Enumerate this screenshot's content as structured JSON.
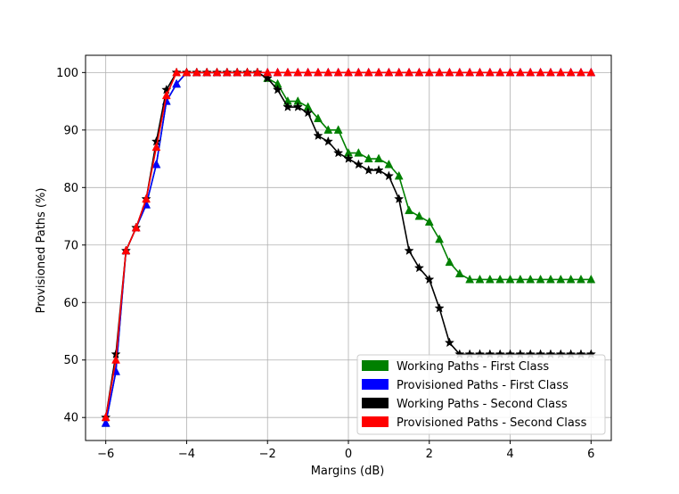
{
  "chart_data": {
    "type": "line",
    "xlabel": "Margins (dB)",
    "ylabel": "Provisioned Paths (%)",
    "xlim": [
      -6.5,
      6.5
    ],
    "ylim": [
      36,
      103
    ],
    "xticks": [
      -6,
      -4,
      -2,
      0,
      2,
      4,
      6
    ],
    "yticks": [
      40,
      50,
      60,
      70,
      80,
      90,
      100
    ],
    "xtick_labels": [
      "−6",
      "−4",
      "−2",
      "0",
      "2",
      "4",
      "6"
    ],
    "ytick_labels": [
      "40",
      "50",
      "60",
      "70",
      "80",
      "90",
      "100"
    ],
    "grid": true,
    "legend_position": "lower-right",
    "x": [
      -6,
      -5.75,
      -5.5,
      -5.25,
      -5,
      -4.75,
      -4.5,
      -4.25,
      -4,
      -3.75,
      -3.5,
      -3.25,
      -3,
      -2.75,
      -2.5,
      -2.25,
      -2,
      -1.75,
      -1.5,
      -1.25,
      -1,
      -0.75,
      -0.5,
      -0.25,
      0,
      0.25,
      0.5,
      0.75,
      1,
      1.25,
      1.5,
      1.75,
      2,
      2.25,
      2.5,
      2.75,
      3,
      3.25,
      3.5,
      3.75,
      4,
      4.25,
      4.5,
      4.75,
      5,
      5.25,
      5.5,
      5.75,
      6
    ],
    "series": [
      {
        "name": "Working Paths - First Class",
        "color": "#008000",
        "marker": "triangle",
        "values": [
          39,
          48,
          69,
          73,
          77,
          84,
          95,
          98,
          100,
          100,
          100,
          100,
          100,
          100,
          100,
          100,
          99,
          98,
          95,
          95,
          94,
          92,
          90,
          90,
          86,
          86,
          85,
          85,
          84,
          82,
          76,
          75,
          74,
          71,
          67,
          65,
          64,
          64,
          64,
          64,
          64,
          64,
          64,
          64,
          64,
          64,
          64,
          64,
          64
        ]
      },
      {
        "name": "Provisioned Paths - First Class",
        "color": "#0000ff",
        "marker": "triangle",
        "values": [
          39,
          48,
          69,
          73,
          77,
          84,
          95,
          98,
          100,
          100,
          100,
          100,
          100,
          100,
          100,
          100,
          100,
          100,
          100,
          100,
          100,
          100,
          100,
          100,
          100,
          100,
          100,
          100,
          100,
          100,
          100,
          100,
          100,
          100,
          100,
          100,
          100,
          100,
          100,
          100,
          100,
          100,
          100,
          100,
          100,
          100,
          100,
          100,
          100
        ]
      },
      {
        "name": "Working Paths - Second Class",
        "color": "#000000",
        "marker": "star",
        "values": [
          40,
          51,
          69,
          73,
          78,
          88,
          97,
          100,
          100,
          100,
          100,
          100,
          100,
          100,
          100,
          100,
          99,
          97,
          94,
          94,
          93,
          89,
          88,
          86,
          85,
          84,
          83,
          83,
          82,
          78,
          69,
          66,
          64,
          59,
          53,
          51,
          51,
          51,
          51,
          51,
          51,
          51,
          51,
          51,
          51,
          51,
          51,
          51,
          51
        ]
      },
      {
        "name": "Provisioned Paths - Second Class",
        "color": "#ff0000",
        "marker": "triangle",
        "values": [
          40,
          50,
          69,
          73,
          78,
          87,
          96,
          100,
          100,
          100,
          100,
          100,
          100,
          100,
          100,
          100,
          100,
          100,
          100,
          100,
          100,
          100,
          100,
          100,
          100,
          100,
          100,
          100,
          100,
          100,
          100,
          100,
          100,
          100,
          100,
          100,
          100,
          100,
          100,
          100,
          100,
          100,
          100,
          100,
          100,
          100,
          100,
          100,
          100
        ]
      }
    ]
  }
}
